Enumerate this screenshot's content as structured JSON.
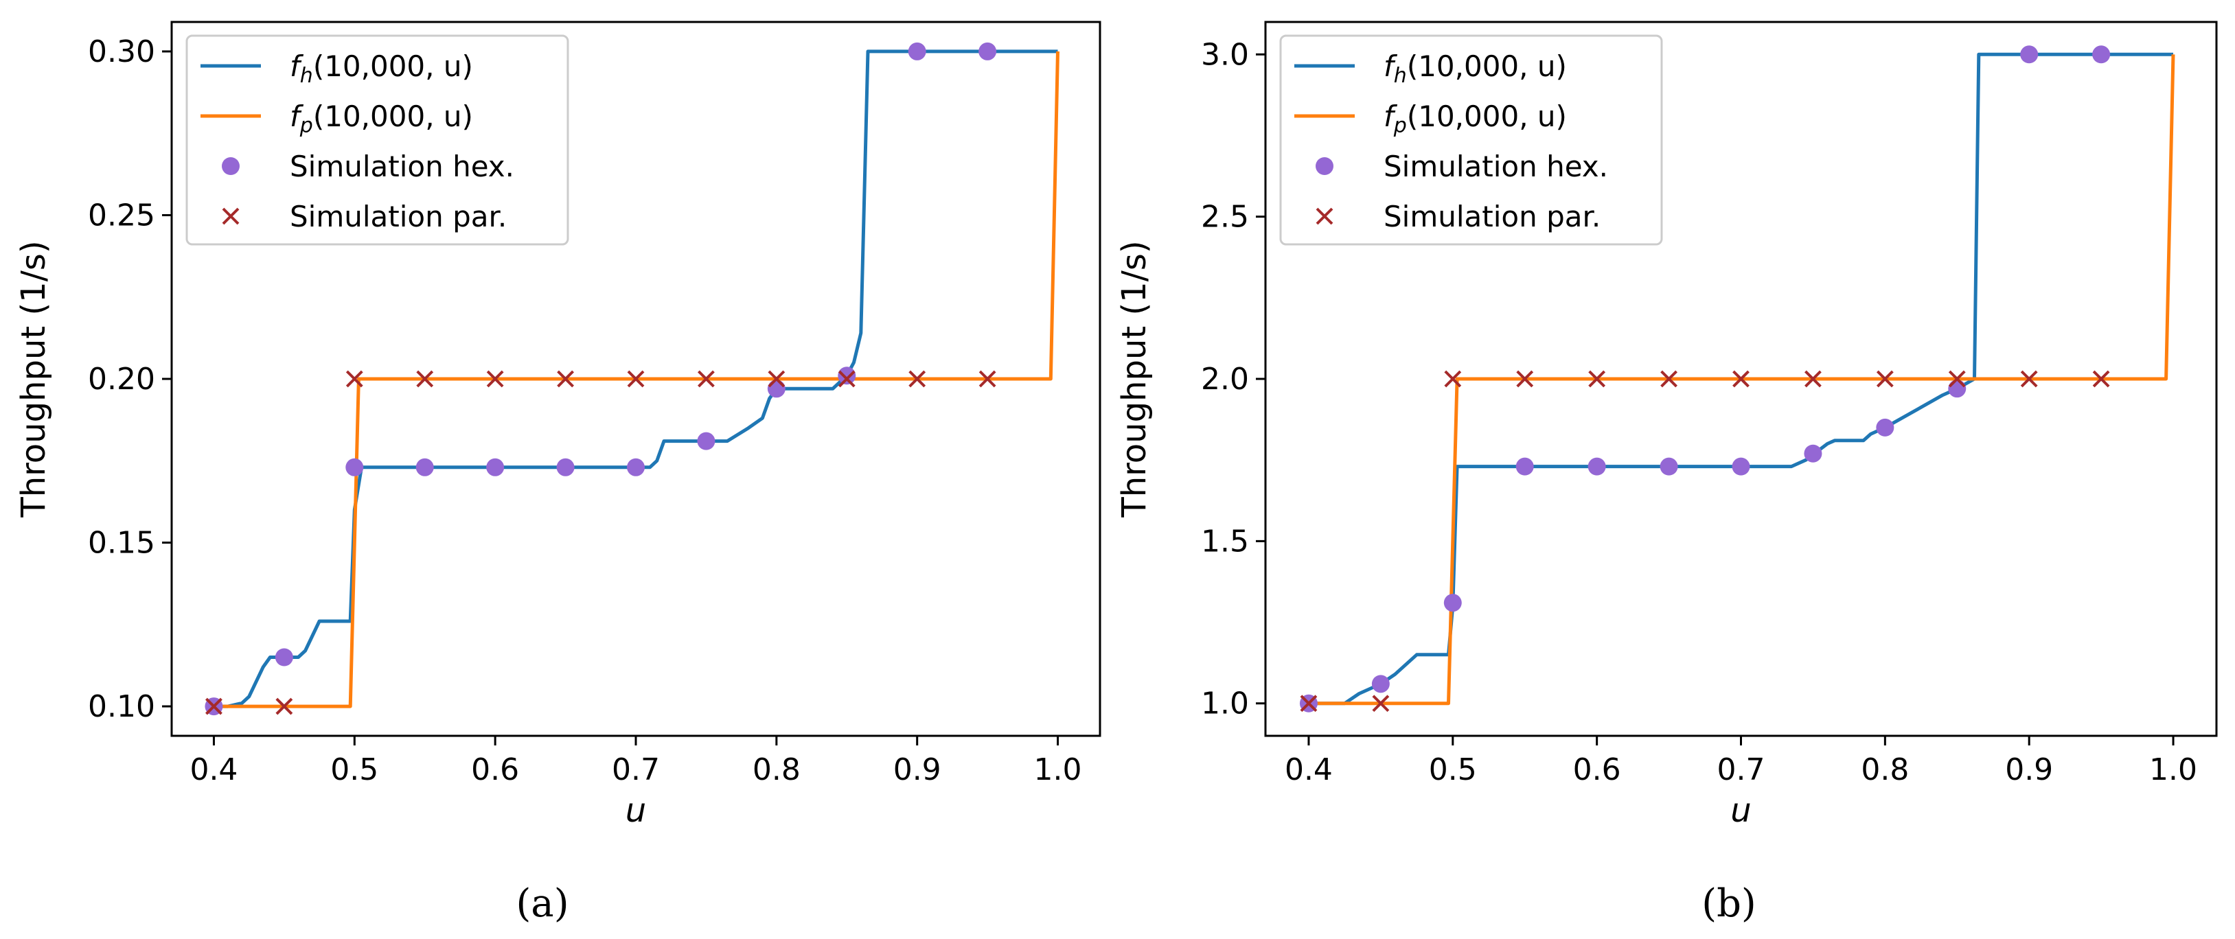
{
  "captions": [
    "(a)",
    "(b)"
  ],
  "chart_data": [
    {
      "type": "line",
      "caption": "(a)",
      "xlabel": "u",
      "ylabel": "Throughput (1/s)",
      "xlim": [
        0.37,
        1.03
      ],
      "ylim": [
        0.091,
        0.309
      ],
      "xticks": [
        0.4,
        0.5,
        0.6,
        0.7,
        0.8,
        0.9,
        1.0
      ],
      "xtick_labels": [
        "0.4",
        "0.5",
        "0.6",
        "0.7",
        "0.8",
        "0.9",
        "1.0"
      ],
      "yticks": [
        0.1,
        0.15,
        0.2,
        0.25,
        0.3
      ],
      "ytick_labels": [
        "0.10",
        "0.15",
        "0.20",
        "0.25",
        "0.30"
      ],
      "legend_position": "top-left",
      "series": [
        {
          "name": "f_h(10,000, u)",
          "label_base": "f",
          "label_sub": "h",
          "label_args": "(10,000, u)",
          "kind": "line",
          "color": "#1f77b4",
          "x": [
            0.4,
            0.41,
            0.42,
            0.425,
            0.435,
            0.44,
            0.455,
            0.46,
            0.465,
            0.475,
            0.48,
            0.497,
            0.5,
            0.505,
            0.71,
            0.715,
            0.72,
            0.725,
            0.765,
            0.78,
            0.79,
            0.795,
            0.8,
            0.805,
            0.84,
            0.85,
            0.855,
            0.86,
            0.865,
            0.99,
            1.0
          ],
          "y": [
            0.1,
            0.1,
            0.101,
            0.103,
            0.112,
            0.115,
            0.115,
            0.115,
            0.117,
            0.126,
            0.126,
            0.126,
            0.16,
            0.173,
            0.173,
            0.175,
            0.181,
            0.181,
            0.181,
            0.185,
            0.188,
            0.194,
            0.197,
            0.197,
            0.197,
            0.201,
            0.205,
            0.214,
            0.3,
            0.3,
            0.3
          ]
        },
        {
          "name": "f_p(10,000, u)",
          "label_base": "f",
          "label_sub": "p",
          "label_args": "(10,000, u)",
          "kind": "line",
          "color": "#ff7f0e",
          "x": [
            0.4,
            0.497,
            0.503,
            0.995,
            1.0
          ],
          "y": [
            0.1,
            0.1,
            0.2,
            0.2,
            0.3
          ]
        },
        {
          "name": "Simulation hex.",
          "kind": "marker-circle",
          "color": "#9467d4",
          "x": [
            0.4,
            0.45,
            0.5,
            0.55,
            0.6,
            0.65,
            0.7,
            0.75,
            0.8,
            0.85,
            0.9,
            0.95
          ],
          "y": [
            0.1,
            0.115,
            0.173,
            0.173,
            0.173,
            0.173,
            0.173,
            0.181,
            0.197,
            0.201,
            0.3,
            0.3
          ]
        },
        {
          "name": "Simulation par.",
          "kind": "marker-x",
          "color": "#a52a2a",
          "x": [
            0.4,
            0.45,
            0.5,
            0.55,
            0.6,
            0.65,
            0.7,
            0.75,
            0.8,
            0.85,
            0.9,
            0.95
          ],
          "y": [
            0.1,
            0.1,
            0.2,
            0.2,
            0.2,
            0.2,
            0.2,
            0.2,
            0.2,
            0.2,
            0.2,
            0.2
          ]
        }
      ]
    },
    {
      "type": "line",
      "caption": "(b)",
      "xlabel": "u",
      "ylabel": "Throughput (1/s)",
      "xlim": [
        0.37,
        1.03
      ],
      "ylim": [
        0.9,
        3.1
      ],
      "xticks": [
        0.4,
        0.5,
        0.6,
        0.7,
        0.8,
        0.9,
        1.0
      ],
      "xtick_labels": [
        "0.4",
        "0.5",
        "0.6",
        "0.7",
        "0.8",
        "0.9",
        "1.0"
      ],
      "yticks": [
        1.0,
        1.5,
        2.0,
        2.5,
        3.0
      ],
      "ytick_labels": [
        "1.0",
        "1.5",
        "2.0",
        "2.5",
        "3.0"
      ],
      "legend_position": "top-left",
      "series": [
        {
          "name": "f_h(10,000, u)",
          "label_base": "f",
          "label_sub": "h",
          "label_args": "(10,000, u)",
          "kind": "line",
          "color": "#1f77b4",
          "x": [
            0.4,
            0.425,
            0.435,
            0.45,
            0.46,
            0.475,
            0.48,
            0.497,
            0.5,
            0.503,
            0.735,
            0.745,
            0.76,
            0.765,
            0.785,
            0.79,
            0.8,
            0.82,
            0.84,
            0.85,
            0.862,
            0.865,
            0.995,
            1.0
          ],
          "y": [
            1.0,
            1.0,
            1.03,
            1.06,
            1.09,
            1.15,
            1.15,
            1.15,
            1.3,
            1.73,
            1.73,
            1.75,
            1.8,
            1.81,
            1.81,
            1.83,
            1.85,
            1.9,
            1.95,
            1.97,
            2.0,
            3.0,
            3.0,
            3.0
          ]
        },
        {
          "name": "f_p(10,000, u)",
          "label_base": "f",
          "label_sub": "p",
          "label_args": "(10,000, u)",
          "kind": "line",
          "color": "#ff7f0e",
          "x": [
            0.4,
            0.497,
            0.503,
            0.995,
            1.0
          ],
          "y": [
            1.0,
            1.0,
            2.0,
            2.0,
            3.0
          ]
        },
        {
          "name": "Simulation hex.",
          "kind": "marker-circle",
          "color": "#9467d4",
          "x": [
            0.4,
            0.45,
            0.5,
            0.55,
            0.6,
            0.65,
            0.7,
            0.75,
            0.8,
            0.85,
            0.9,
            0.95
          ],
          "y": [
            1.0,
            1.06,
            1.31,
            1.73,
            1.73,
            1.73,
            1.73,
            1.77,
            1.85,
            1.97,
            3.0,
            3.0
          ]
        },
        {
          "name": "Simulation par.",
          "kind": "marker-x",
          "color": "#a52a2a",
          "x": [
            0.4,
            0.45,
            0.5,
            0.55,
            0.6,
            0.65,
            0.7,
            0.75,
            0.8,
            0.85,
            0.9,
            0.95
          ],
          "y": [
            1.0,
            1.0,
            2.0,
            2.0,
            2.0,
            2.0,
            2.0,
            2.0,
            2.0,
            2.0,
            2.0,
            2.0
          ]
        }
      ]
    }
  ]
}
